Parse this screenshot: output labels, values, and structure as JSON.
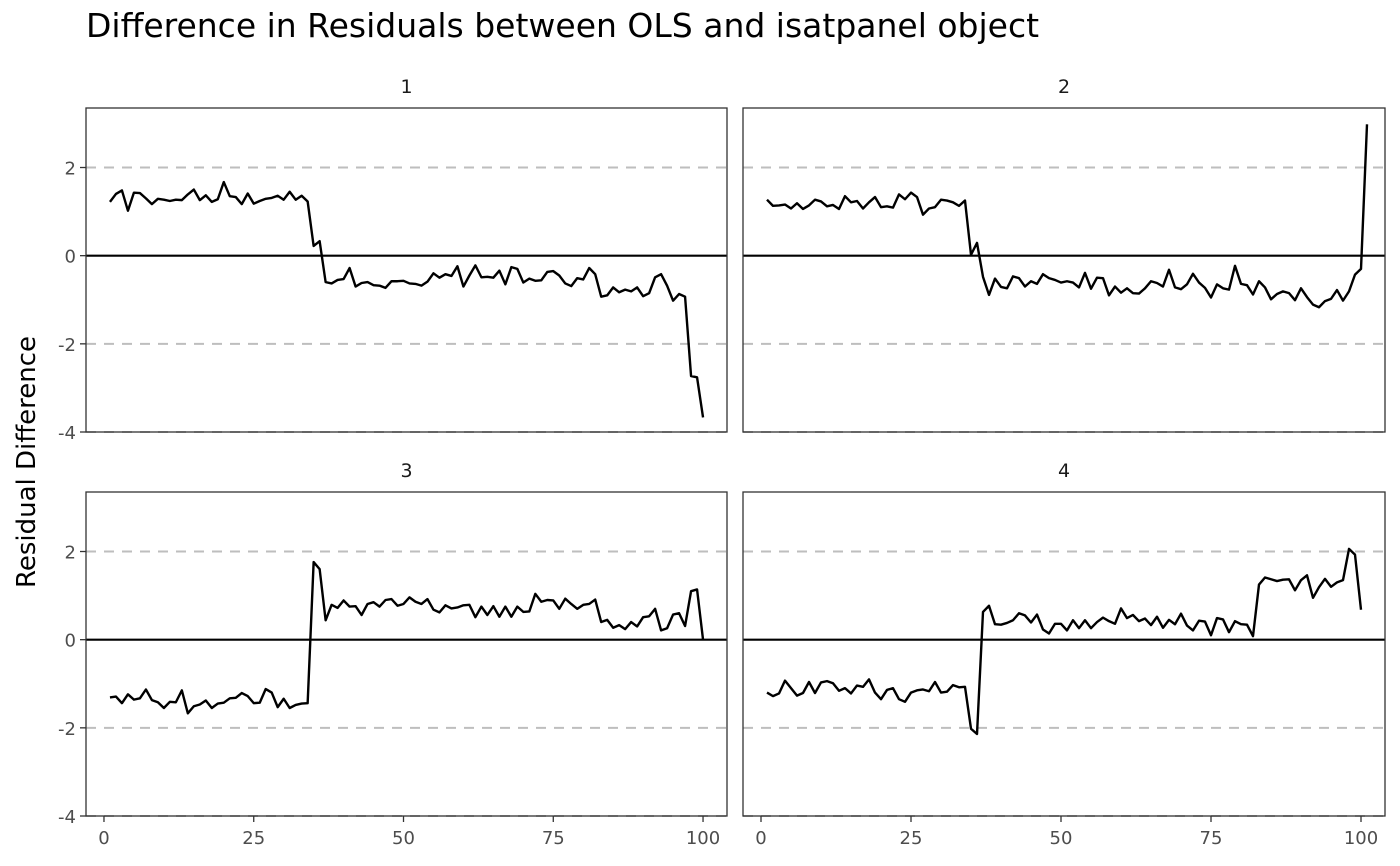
{
  "chart_data": {
    "type": "line",
    "title": "Difference in Residuals between OLS and isatpanel object",
    "xlabel": "",
    "ylabel": "Residual Difference",
    "xlim": [
      -3,
      104
    ],
    "ylim": [
      -4,
      3.35
    ],
    "xticks": [
      0,
      25,
      50,
      75,
      100
    ],
    "yticks": [
      -4,
      -2,
      0,
      2
    ],
    "xtick_labels": [
      "0",
      "25",
      "50",
      "75",
      "100"
    ],
    "ytick_labels": [
      "-4",
      "-2",
      "0",
      "2"
    ],
    "hlines": [
      {
        "y": 0,
        "style": "solid",
        "color": "#000000"
      },
      {
        "y": 2,
        "style": "dashed",
        "color": "#bebebe"
      },
      {
        "y": -2,
        "style": "dashed",
        "color": "#bebebe"
      }
    ],
    "line_color": "#000000",
    "grid": false,
    "panels": [
      {
        "name": "1",
        "x_start": 1,
        "values": [
          1.22,
          1.4,
          1.48,
          1.02,
          1.43,
          1.42,
          1.3,
          1.17,
          1.29,
          1.27,
          1.24,
          1.27,
          1.26,
          1.39,
          1.5,
          1.26,
          1.37,
          1.22,
          1.28,
          1.67,
          1.35,
          1.33,
          1.17,
          1.41,
          1.18,
          1.24,
          1.29,
          1.31,
          1.36,
          1.27,
          1.45,
          1.27,
          1.36,
          1.23,
          0.22,
          0.33,
          -0.6,
          -0.63,
          -0.55,
          -0.53,
          -0.28,
          -0.7,
          -0.62,
          -0.6,
          -0.67,
          -0.68,
          -0.73,
          -0.58,
          -0.58,
          -0.57,
          -0.63,
          -0.64,
          -0.68,
          -0.59,
          -0.4,
          -0.5,
          -0.42,
          -0.46,
          -0.24,
          -0.7,
          -0.45,
          -0.22,
          -0.49,
          -0.48,
          -0.5,
          -0.34,
          -0.65,
          -0.26,
          -0.3,
          -0.61,
          -0.52,
          -0.57,
          -0.56,
          -0.37,
          -0.35,
          -0.45,
          -0.63,
          -0.69,
          -0.51,
          -0.54,
          -0.28,
          -0.42,
          -0.93,
          -0.9,
          -0.72,
          -0.83,
          -0.77,
          -0.81,
          -0.72,
          -0.92,
          -0.85,
          -0.49,
          -0.42,
          -0.68,
          -1.02,
          -0.87,
          -0.93,
          -2.73,
          -2.76,
          -3.67
        ]
      },
      {
        "name": "2",
        "x_start": 1,
        "values": [
          1.27,
          1.13,
          1.14,
          1.16,
          1.07,
          1.19,
          1.06,
          1.14,
          1.27,
          1.23,
          1.12,
          1.15,
          1.06,
          1.35,
          1.21,
          1.24,
          1.07,
          1.21,
          1.33,
          1.1,
          1.12,
          1.09,
          1.39,
          1.28,
          1.43,
          1.33,
          0.93,
          1.07,
          1.1,
          1.27,
          1.25,
          1.21,
          1.13,
          1.25,
          0.02,
          0.29,
          -0.48,
          -0.89,
          -0.52,
          -0.71,
          -0.74,
          -0.47,
          -0.51,
          -0.7,
          -0.58,
          -0.64,
          -0.42,
          -0.51,
          -0.55,
          -0.61,
          -0.58,
          -0.61,
          -0.72,
          -0.39,
          -0.75,
          -0.5,
          -0.51,
          -0.9,
          -0.7,
          -0.84,
          -0.74,
          -0.85,
          -0.86,
          -0.74,
          -0.58,
          -0.62,
          -0.7,
          -0.32,
          -0.72,
          -0.76,
          -0.65,
          -0.41,
          -0.61,
          -0.73,
          -0.95,
          -0.65,
          -0.74,
          -0.77,
          -0.23,
          -0.64,
          -0.67,
          -0.88,
          -0.58,
          -0.72,
          -0.99,
          -0.87,
          -0.81,
          -0.85,
          -1.01,
          -0.74,
          -0.94,
          -1.11,
          -1.17,
          -1.03,
          -0.98,
          -0.78,
          -1.02,
          -0.81,
          -0.43,
          -0.3,
          2.98
        ]
      },
      {
        "name": "3",
        "x_start": 1,
        "values": [
          -1.31,
          -1.29,
          -1.44,
          -1.24,
          -1.36,
          -1.33,
          -1.13,
          -1.37,
          -1.42,
          -1.55,
          -1.41,
          -1.42,
          -1.15,
          -1.67,
          -1.51,
          -1.47,
          -1.38,
          -1.55,
          -1.45,
          -1.43,
          -1.33,
          -1.32,
          -1.21,
          -1.28,
          -1.44,
          -1.43,
          -1.12,
          -1.2,
          -1.53,
          -1.34,
          -1.55,
          -1.48,
          -1.45,
          -1.44,
          1.76,
          1.6,
          0.44,
          0.79,
          0.72,
          0.89,
          0.75,
          0.76,
          0.56,
          0.81,
          0.85,
          0.75,
          0.9,
          0.92,
          0.77,
          0.81,
          0.96,
          0.86,
          0.81,
          0.92,
          0.68,
          0.62,
          0.78,
          0.71,
          0.73,
          0.78,
          0.79,
          0.51,
          0.75,
          0.56,
          0.76,
          0.52,
          0.75,
          0.52,
          0.75,
          0.63,
          0.64,
          1.04,
          0.86,
          0.9,
          0.89,
          0.7,
          0.93,
          0.81,
          0.7,
          0.79,
          0.81,
          0.91,
          0.4,
          0.45,
          0.27,
          0.33,
          0.24,
          0.4,
          0.3,
          0.51,
          0.53,
          0.7,
          0.21,
          0.26,
          0.57,
          0.6,
          0.31,
          1.1,
          1.14,
          0.0
        ]
      },
      {
        "name": "4",
        "x_start": 1,
        "values": [
          -1.2,
          -1.28,
          -1.22,
          -0.93,
          -1.1,
          -1.27,
          -1.21,
          -0.96,
          -1.21,
          -0.97,
          -0.94,
          -0.99,
          -1.16,
          -1.1,
          -1.22,
          -1.04,
          -1.07,
          -0.9,
          -1.2,
          -1.35,
          -1.14,
          -1.1,
          -1.35,
          -1.41,
          -1.2,
          -1.15,
          -1.13,
          -1.17,
          -0.96,
          -1.2,
          -1.18,
          -1.03,
          -1.08,
          -1.07,
          -2.02,
          -2.14,
          0.63,
          0.77,
          0.35,
          0.34,
          0.38,
          0.44,
          0.6,
          0.55,
          0.39,
          0.57,
          0.23,
          0.14,
          0.36,
          0.36,
          0.21,
          0.44,
          0.26,
          0.44,
          0.26,
          0.4,
          0.5,
          0.42,
          0.36,
          0.71,
          0.49,
          0.56,
          0.42,
          0.48,
          0.33,
          0.52,
          0.27,
          0.45,
          0.35,
          0.59,
          0.32,
          0.21,
          0.43,
          0.41,
          0.1,
          0.49,
          0.46,
          0.17,
          0.42,
          0.35,
          0.34,
          0.08,
          1.25,
          1.41,
          1.37,
          1.33,
          1.36,
          1.37,
          1.12,
          1.35,
          1.46,
          0.95,
          1.19,
          1.38,
          1.2,
          1.3,
          1.35,
          2.06,
          1.93,
          0.68
        ]
      }
    ]
  }
}
